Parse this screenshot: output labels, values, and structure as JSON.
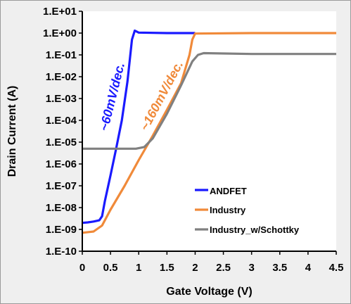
{
  "chart_data": {
    "type": "line",
    "title": "",
    "xlabel": "Gate Voltage (V)",
    "ylabel": "Drain Current (A)",
    "xlim": [
      0,
      4.5
    ],
    "ylim_exponent": [
      -10,
      1
    ],
    "yscale": "log",
    "grid": false,
    "legend_position": "bottom-right",
    "x_ticks": [
      "0",
      "0.5",
      "1",
      "1.5",
      "2",
      "2.5",
      "3",
      "3.5",
      "4",
      "4.5"
    ],
    "y_ticks": [
      "1.E-10",
      "1.E-09",
      "1.E-08",
      "1.E-07",
      "1.E-06",
      "1.E-05",
      "1.E-04",
      "1.E-03",
      "1.E-02",
      "1.E-01",
      "1.E+00",
      "1.E+01"
    ],
    "series": [
      {
        "name": "ANDFET",
        "color": "#1a1aff",
        "points": [
          [
            0,
            2e-09
          ],
          [
            0.1,
            2.1e-09
          ],
          [
            0.2,
            2.3e-09
          ],
          [
            0.3,
            2.6e-09
          ],
          [
            0.35,
            4e-09
          ],
          [
            0.4,
            2e-08
          ],
          [
            0.5,
            3e-07
          ],
          [
            0.6,
            5e-06
          ],
          [
            0.7,
            0.0001
          ],
          [
            0.8,
            0.006
          ],
          [
            0.88,
            0.5
          ],
          [
            0.93,
            1.3
          ],
          [
            1.0,
            1.05
          ],
          [
            1.5,
            1.0
          ],
          [
            2.0,
            1.0
          ]
        ]
      },
      {
        "name": "Industry",
        "color": "#f08a3a",
        "points": [
          [
            0,
            7e-10
          ],
          [
            0.2,
            8e-10
          ],
          [
            0.35,
            1.5e-09
          ],
          [
            0.5,
            8e-09
          ],
          [
            0.75,
            1e-07
          ],
          [
            1.0,
            1.5e-06
          ],
          [
            1.25,
            2e-05
          ],
          [
            1.5,
            0.0003
          ],
          [
            1.75,
            0.005
          ],
          [
            1.9,
            0.1
          ],
          [
            1.95,
            0.5
          ],
          [
            2.0,
            0.95
          ],
          [
            3.0,
            1.0
          ],
          [
            4.5,
            1.0
          ]
        ]
      },
      {
        "name": "Industry_w/Schottky",
        "color": "#808080",
        "points": [
          [
            0,
            5e-06
          ],
          [
            0.5,
            5e-06
          ],
          [
            0.95,
            5e-06
          ],
          [
            1.1,
            6e-06
          ],
          [
            1.25,
            1.5e-05
          ],
          [
            1.5,
            0.0002
          ],
          [
            1.75,
            0.004
          ],
          [
            1.95,
            0.05
          ],
          [
            2.05,
            0.1
          ],
          [
            2.15,
            0.12
          ],
          [
            3.0,
            0.11
          ],
          [
            4.5,
            0.11
          ]
        ]
      }
    ],
    "annotations": [
      {
        "text": "~60mV/dec.",
        "color": "#1a1aff"
      },
      {
        "text": "~160mV/dec.",
        "color": "#f08a3a"
      }
    ]
  }
}
